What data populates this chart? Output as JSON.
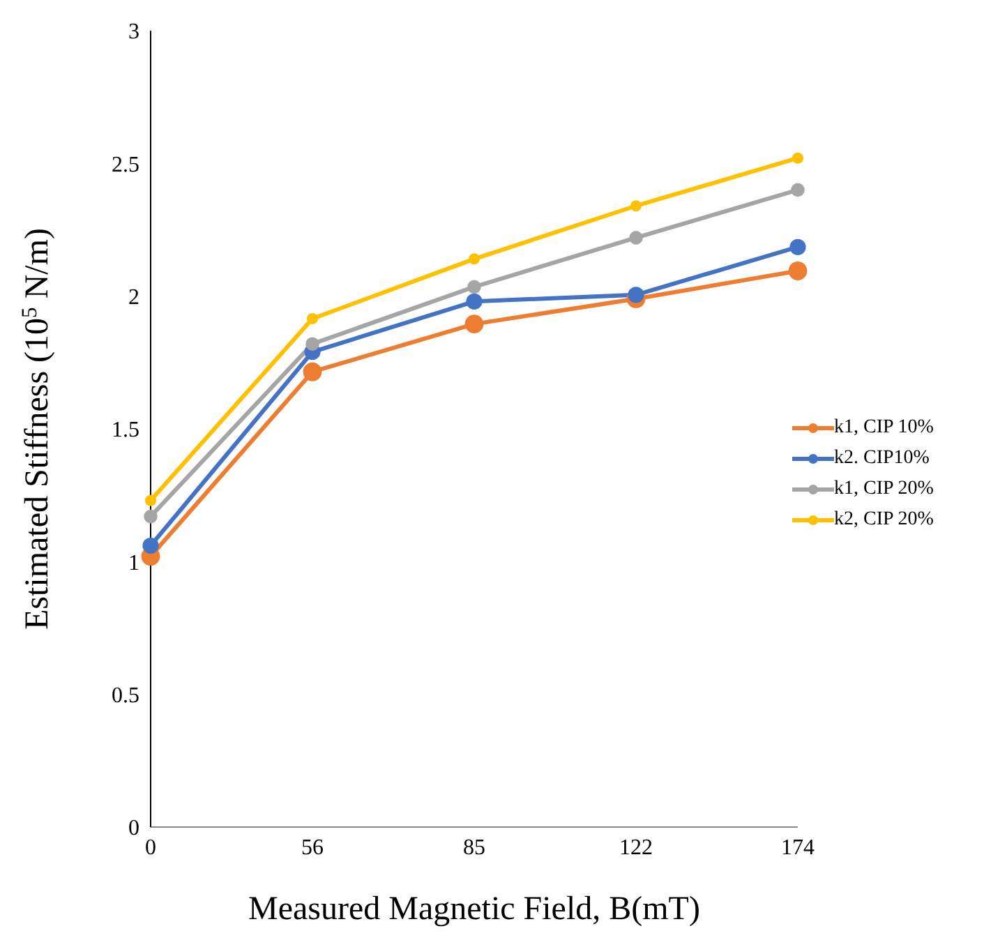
{
  "chart_data": {
    "type": "line",
    "xlabel": "Measured Magnetic Field, B(mT)",
    "ylabel": "Estimated Stiffness (10$^{5}$ N/m)",
    "categories": [
      "0",
      "56",
      "85",
      "122",
      "174"
    ],
    "ylim": [
      0,
      3
    ],
    "yticks": [
      0,
      0.5,
      1,
      1.5,
      2,
      2.5,
      3
    ],
    "grid": false,
    "legend": "right",
    "marker": "circle",
    "line_style": "solid",
    "series": [
      {
        "name": "k1, CIP 10%",
        "color": "#ed7d31",
        "values": [
          1.02,
          1.715,
          1.895,
          1.99,
          2.095
        ]
      },
      {
        "name": "k2. CIP10%",
        "color": "#4472c4",
        "values": [
          1.06,
          1.79,
          1.98,
          2.005,
          2.185
        ]
      },
      {
        "name": "k1, CIP 20%",
        "color": "#a5a5a5",
        "values": [
          1.17,
          1.82,
          2.035,
          2.22,
          2.4
        ]
      },
      {
        "name": "k2, CIP 20%",
        "color": "#ffc000",
        "values": [
          1.23,
          1.915,
          2.14,
          2.34,
          2.52
        ]
      }
    ]
  }
}
